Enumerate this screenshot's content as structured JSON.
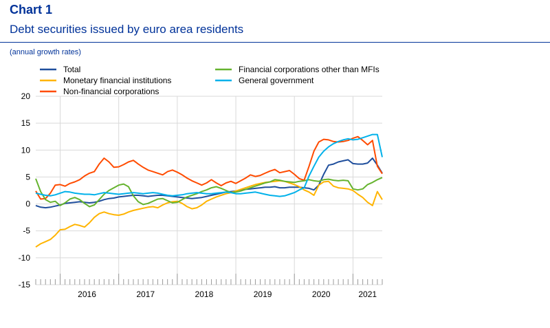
{
  "header": {
    "title": "Chart 1",
    "subtitle": "Debt securities issued by euro area residents",
    "unit": "(annual growth rates)"
  },
  "chart_data": {
    "type": "line",
    "ylim": [
      -15,
      20
    ],
    "yticks": [
      20,
      15,
      10,
      5,
      0,
      -5,
      -10,
      -15
    ],
    "x_start": "2015-08",
    "x_end": "2021-07",
    "year_labels": [
      "2016",
      "2017",
      "2018",
      "2019",
      "2020",
      "2021"
    ],
    "grid": true,
    "legend_position": "top",
    "series": [
      {
        "name": "Total",
        "color": "#1f4e9c",
        "values": [
          -0.3,
          -0.6,
          -0.7,
          -0.6,
          -0.4,
          -0.2,
          0.1,
          0.2,
          0.3,
          0.4,
          0.3,
          0.2,
          0.3,
          0.5,
          0.8,
          1.0,
          1.1,
          1.3,
          1.4,
          1.5,
          1.6,
          1.6,
          1.5,
          1.4,
          1.5,
          1.6,
          1.6,
          1.5,
          1.4,
          1.3,
          1.2,
          1.1,
          1.0,
          1.1,
          1.2,
          1.4,
          1.6,
          1.8,
          2.0,
          2.2,
          2.3,
          2.4,
          2.5,
          2.7,
          2.8,
          2.9,
          3.0,
          3.1,
          3.1,
          3.2,
          3.0,
          3.0,
          3.1,
          3.1,
          3.1,
          3.0,
          2.9,
          2.6,
          3.5,
          5.5,
          7.2,
          7.4,
          7.8,
          8.0,
          8.2,
          7.5,
          7.4,
          7.4,
          7.6,
          8.5,
          7.2,
          5.7
        ]
      },
      {
        "name": "Monetary financial institutions",
        "color": "#ffb400",
        "values": [
          -8.0,
          -7.4,
          -7.0,
          -6.6,
          -5.8,
          -4.8,
          -4.7,
          -4.2,
          -3.8,
          -4.0,
          -4.3,
          -3.5,
          -2.5,
          -1.8,
          -1.5,
          -1.8,
          -2.0,
          -2.1,
          -1.9,
          -1.5,
          -1.2,
          -1.0,
          -0.8,
          -0.6,
          -0.5,
          -0.7,
          -0.2,
          0.2,
          0.4,
          0.5,
          0.1,
          -0.5,
          -0.9,
          -0.7,
          -0.2,
          0.5,
          0.9,
          1.3,
          1.6,
          1.9,
          2.1,
          2.4,
          2.7,
          3.0,
          3.3,
          3.6,
          3.8,
          4.0,
          4.1,
          4.2,
          4.3,
          4.2,
          3.9,
          3.6,
          3.2,
          2.6,
          2.2,
          1.6,
          3.5,
          4.1,
          4.2,
          3.3,
          3.0,
          2.9,
          2.8,
          2.5,
          1.8,
          1.2,
          0.3,
          -0.3,
          2.3,
          0.8
        ]
      },
      {
        "name": "Non-financial corporations",
        "color": "#ff4b00",
        "values": [
          2.4,
          0.9,
          1.0,
          2.0,
          3.5,
          3.6,
          3.3,
          3.8,
          4.1,
          4.5,
          5.2,
          5.7,
          6.0,
          7.4,
          8.5,
          7.8,
          6.8,
          6.9,
          7.3,
          7.8,
          8.1,
          7.4,
          6.8,
          6.3,
          6.0,
          5.7,
          5.4,
          6.0,
          6.3,
          5.9,
          5.4,
          4.8,
          4.3,
          3.9,
          3.5,
          3.9,
          4.5,
          3.9,
          3.4,
          3.9,
          4.2,
          3.8,
          4.3,
          4.8,
          5.4,
          5.1,
          5.3,
          5.7,
          6.1,
          6.4,
          5.8,
          6.0,
          6.2,
          5.5,
          4.7,
          4.4,
          7.0,
          9.8,
          11.5,
          12.0,
          11.9,
          11.6,
          11.5,
          11.6,
          11.8,
          12.2,
          12.5,
          11.8,
          11.0,
          11.8,
          7.0,
          5.6
        ]
      },
      {
        "name": "Financial corporations other than MFIs",
        "color": "#65b32e",
        "values": [
          4.7,
          2.3,
          0.8,
          0.3,
          0.5,
          -0.3,
          0.2,
          0.9,
          1.2,
          0.8,
          0.1,
          -0.5,
          -0.2,
          0.8,
          1.8,
          2.5,
          3.0,
          3.5,
          3.7,
          3.2,
          1.5,
          0.4,
          -0.1,
          0.1,
          0.5,
          0.9,
          1.0,
          0.6,
          0.2,
          0.3,
          0.8,
          1.3,
          1.6,
          1.9,
          2.3,
          2.6,
          3.0,
          3.2,
          2.9,
          2.5,
          2.1,
          2.2,
          2.4,
          2.7,
          3.0,
          3.3,
          3.6,
          3.9,
          4.1,
          4.5,
          4.4,
          4.2,
          4.1,
          4.0,
          4.2,
          4.3,
          4.5,
          4.3,
          4.2,
          4.5,
          4.6,
          4.4,
          4.3,
          4.4,
          4.3,
          2.8,
          2.6,
          2.8,
          3.6,
          4.0,
          4.5,
          4.9
        ]
      },
      {
        "name": "General government",
        "color": "#00b1ea",
        "values": [
          2.0,
          1.8,
          1.6,
          1.5,
          1.7,
          2.0,
          2.3,
          2.2,
          2.0,
          1.9,
          1.8,
          1.8,
          1.7,
          1.9,
          2.1,
          2.0,
          1.9,
          1.8,
          1.9,
          2.0,
          2.1,
          2.0,
          1.9,
          2.0,
          2.1,
          2.0,
          1.8,
          1.6,
          1.5,
          1.6,
          1.7,
          1.9,
          2.0,
          2.1,
          2.0,
          1.9,
          1.9,
          2.0,
          2.1,
          2.2,
          2.1,
          1.9,
          1.9,
          2.0,
          2.1,
          2.2,
          2.0,
          1.8,
          1.6,
          1.5,
          1.4,
          1.5,
          1.8,
          2.1,
          2.6,
          3.0,
          5.2,
          7.0,
          8.7,
          9.8,
          10.6,
          11.2,
          11.6,
          11.9,
          12.1,
          11.9,
          12.0,
          12.3,
          12.6,
          12.9,
          12.9,
          8.7
        ]
      }
    ]
  }
}
